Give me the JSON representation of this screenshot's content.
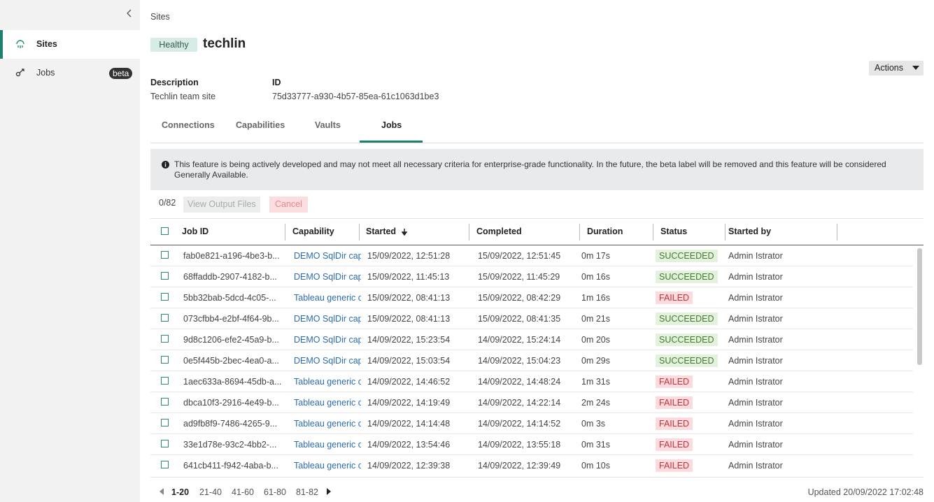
{
  "sidebar": {
    "items": [
      {
        "label": "Sites"
      },
      {
        "label": "Jobs",
        "badge": "beta"
      }
    ]
  },
  "breadcrumb": "Sites",
  "header": {
    "status": "Healthy",
    "title": "techlin",
    "actions": "Actions"
  },
  "details": [
    {
      "label": "Description",
      "value": "Techlin team site"
    },
    {
      "label": "ID",
      "value": "75d33777-a930-4b57-85ea-61c1063d1be3"
    }
  ],
  "tabs": [
    "Connections",
    "Capabilities",
    "Vaults",
    "Jobs"
  ],
  "notice": "This feature is being actively developed and may not meet all necessary criteria for enterprise-grade functionality. In the future, the beta label will be removed and this feature will be considered Generally Available.",
  "toolbar": {
    "count": "0/82",
    "buttons": [
      "View Output Files",
      "Cancel"
    ]
  },
  "table": {
    "columns": [
      "Job ID",
      "Capability",
      "Started",
      "Completed",
      "Duration",
      "Status",
      "Started by"
    ],
    "status_styles": {
      "SUCCEEDED": {
        "bg": "#e4f1dc",
        "fg": "#3f7d2d"
      },
      "FAILED": {
        "bg": "#fbdbde",
        "fg": "#c4313b"
      }
    },
    "rows": [
      [
        "fab0e821-a196-4be3-b...",
        "DEMO SqlDir cap",
        "15/09/2022, 12:51:28",
        "15/09/2022, 12:51:45",
        "0m 17s",
        "SUCCEEDED",
        "Admin Istrator"
      ],
      [
        "68ffaddb-2907-4182-b...",
        "DEMO SqlDir cap",
        "15/09/2022, 11:45:13",
        "15/09/2022, 11:45:29",
        "0m 16s",
        "SUCCEEDED",
        "Admin Istrator"
      ],
      [
        "5bb32bab-5dcd-4c05-...",
        "Tableau generic c",
        "15/09/2022, 08:41:13",
        "15/09/2022, 08:42:29",
        "1m 16s",
        "FAILED",
        "Admin Istrator"
      ],
      [
        "073cfbb4-e2bf-4f64-9b...",
        "DEMO SqlDir cap",
        "15/09/2022, 08:41:13",
        "15/09/2022, 08:41:35",
        "0m 21s",
        "SUCCEEDED",
        "Admin Istrator"
      ],
      [
        "9d8c1206-efe2-45a9-b...",
        "DEMO SqlDir cap",
        "14/09/2022, 15:23:54",
        "14/09/2022, 15:24:14",
        "0m 20s",
        "SUCCEEDED",
        "Admin Istrator"
      ],
      [
        "0e5f445b-2bec-4ea0-a...",
        "DEMO SqlDir cap",
        "14/09/2022, 15:03:54",
        "14/09/2022, 15:04:23",
        "0m 29s",
        "SUCCEEDED",
        "Admin Istrator"
      ],
      [
        "1aec633a-8694-45db-a...",
        "Tableau generic c",
        "14/09/2022, 14:46:52",
        "14/09/2022, 14:48:24",
        "1m 31s",
        "FAILED",
        "Admin Istrator"
      ],
      [
        "dbca10f3-2916-4e49-b...",
        "Tableau generic c",
        "14/09/2022, 14:19:49",
        "14/09/2022, 14:22:14",
        "2m 24s",
        "FAILED",
        "Admin Istrator"
      ],
      [
        "ad9fb8f9-7486-4265-9...",
        "Tableau generic c",
        "14/09/2022, 14:14:48",
        "14/09/2022, 14:14:52",
        "0m 3s",
        "FAILED",
        "Admin Istrator"
      ],
      [
        "33e1d78e-93c2-4bb2-...",
        "Tableau generic c",
        "14/09/2022, 13:54:46",
        "14/09/2022, 13:55:18",
        "0m 31s",
        "FAILED",
        "Admin Istrator"
      ],
      [
        "641cb411-f942-4aba-b...",
        "Tableau generic c",
        "14/09/2022, 12:39:38",
        "14/09/2022, 12:39:49",
        "0m 10s",
        "FAILED",
        "Admin Istrator"
      ]
    ]
  },
  "pagination": {
    "pages": [
      "1-20",
      "21-40",
      "41-60",
      "61-80",
      "81-82"
    ],
    "updated": "Updated 20/09/2022 17:02:48"
  }
}
